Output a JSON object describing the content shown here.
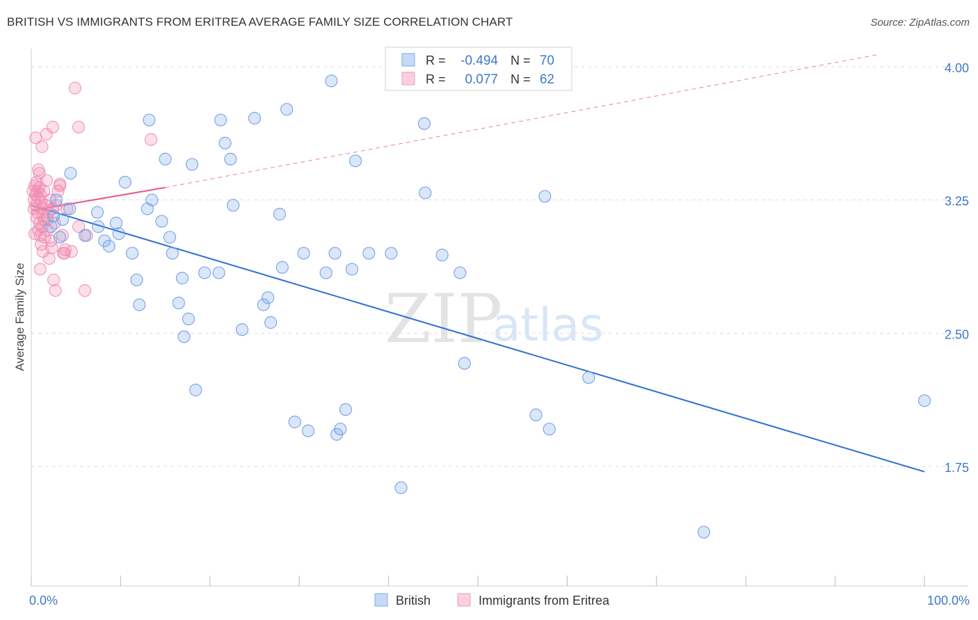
{
  "header": {
    "title": "BRITISH VS IMMIGRANTS FROM ERITREA AVERAGE FAMILY SIZE CORRELATION CHART",
    "source": "Source: ZipAtlas.com"
  },
  "watermark": {
    "zip": "ZIP",
    "atlas": "atlas"
  },
  "legend_box": {
    "rows": [
      {
        "r_label": "R =",
        "r_value": "-0.494",
        "n_label": "N =",
        "n_value": "70"
      },
      {
        "r_label": "R =",
        "r_value": "0.077",
        "n_label": "N =",
        "n_value": "62"
      }
    ]
  },
  "colors": {
    "british": "#6ea0e6",
    "british_line": "#2f6fd0",
    "eritrea": "#f08cb0",
    "eritrea_line": "#e4608e",
    "value_text": "#3f78c8",
    "grid": "#dddddd"
  },
  "chart_data": {
    "type": "scatter",
    "xlabel": "",
    "ylabel": "Average Family Size",
    "x_tick_labels": [
      "0.0%",
      "100.0%"
    ],
    "y_tick_labels": [
      "1.75",
      "2.50",
      "3.25",
      "4.00"
    ],
    "y_ticks": [
      1.75,
      2.5,
      3.25,
      4.0
    ],
    "xlim": [
      0,
      100
    ],
    "ylim": [
      1.0,
      4.1
    ],
    "grid": true,
    "legend_position": "bottom-center",
    "series": [
      {
        "name": "British",
        "r": -0.494,
        "n": 70,
        "points": [
          [
            3.2,
            3.04
          ],
          [
            4.4,
            3.4
          ],
          [
            2.2,
            3.1
          ],
          [
            2.5,
            3.16
          ],
          [
            2.8,
            3.25
          ],
          [
            3.5,
            3.14
          ],
          [
            4.3,
            3.2
          ],
          [
            6.0,
            3.05
          ],
          [
            7.4,
            3.18
          ],
          [
            7.5,
            3.1
          ],
          [
            8.2,
            3.02
          ],
          [
            9.5,
            3.12
          ],
          [
            9.8,
            3.06
          ],
          [
            8.7,
            2.99
          ],
          [
            10.5,
            3.35
          ],
          [
            11.3,
            2.95
          ],
          [
            11.8,
            2.8
          ],
          [
            12.1,
            2.66
          ],
          [
            13.0,
            3.2
          ],
          [
            13.5,
            3.25
          ],
          [
            13.2,
            3.7
          ],
          [
            14.6,
            3.13
          ],
          [
            15.5,
            3.04
          ],
          [
            15.0,
            3.48
          ],
          [
            15.8,
            2.95
          ],
          [
            16.5,
            2.67
          ],
          [
            16.9,
            2.81
          ],
          [
            17.6,
            2.58
          ],
          [
            18.0,
            3.45
          ],
          [
            19.4,
            2.84
          ],
          [
            21.0,
            2.84
          ],
          [
            21.2,
            3.7
          ],
          [
            17.1,
            2.48
          ],
          [
            18.4,
            2.18
          ],
          [
            21.7,
            3.57
          ],
          [
            22.3,
            3.48
          ],
          [
            22.6,
            3.22
          ],
          [
            23.6,
            2.52
          ],
          [
            25.0,
            3.71
          ],
          [
            26.0,
            2.66
          ],
          [
            26.5,
            2.7
          ],
          [
            26.8,
            2.56
          ],
          [
            28.1,
            2.87
          ],
          [
            27.8,
            3.17
          ],
          [
            28.6,
            3.76
          ],
          [
            29.5,
            2.0
          ],
          [
            31.0,
            1.95
          ],
          [
            33.0,
            2.84
          ],
          [
            34.0,
            2.95
          ],
          [
            33.6,
            3.92
          ],
          [
            34.2,
            1.93
          ],
          [
            34.6,
            1.96
          ],
          [
            35.2,
            2.07
          ],
          [
            35.9,
            2.86
          ],
          [
            36.3,
            3.47
          ],
          [
            37.8,
            2.95
          ],
          [
            40.3,
            2.95
          ],
          [
            41.4,
            1.63
          ],
          [
            44.1,
            3.29
          ],
          [
            44.0,
            3.68
          ],
          [
            46.0,
            2.94
          ],
          [
            48.0,
            2.84
          ],
          [
            48.5,
            2.33
          ],
          [
            56.5,
            2.04
          ],
          [
            57.5,
            3.27
          ],
          [
            58.0,
            1.96
          ],
          [
            62.4,
            2.25
          ],
          [
            75.3,
            1.38
          ],
          [
            100.0,
            2.12
          ],
          [
            30.5,
            2.95
          ]
        ],
        "trend": {
          "x": [
            0,
            100
          ],
          "y": [
            3.22,
            1.72
          ],
          "style": "solid"
        }
      },
      {
        "name": "Immigrants from Eritrea",
        "r": 0.077,
        "n": 62,
        "points": [
          [
            0.2,
            3.3
          ],
          [
            0.3,
            3.25
          ],
          [
            0.3,
            3.2
          ],
          [
            0.4,
            3.33
          ],
          [
            0.5,
            3.28
          ],
          [
            0.5,
            3.22
          ],
          [
            0.6,
            3.35
          ],
          [
            0.6,
            3.15
          ],
          [
            0.7,
            3.3
          ],
          [
            0.7,
            3.18
          ],
          [
            0.8,
            3.26
          ],
          [
            0.8,
            3.08
          ],
          [
            0.9,
            3.32
          ],
          [
            0.9,
            3.12
          ],
          [
            1.0,
            3.28
          ],
          [
            1.0,
            3.05
          ],
          [
            1.1,
            3.24
          ],
          [
            1.1,
            3.0
          ],
          [
            1.2,
            3.2
          ],
          [
            1.2,
            3.1
          ],
          [
            1.3,
            3.16
          ],
          [
            1.3,
            2.96
          ],
          [
            1.4,
            3.3
          ],
          [
            1.5,
            3.14
          ],
          [
            1.5,
            3.04
          ],
          [
            1.6,
            3.22
          ],
          [
            1.7,
            3.36
          ],
          [
            1.8,
            3.08
          ],
          [
            1.9,
            3.18
          ],
          [
            2.0,
            2.92
          ],
          [
            2.1,
            3.25
          ],
          [
            2.2,
            3.02
          ],
          [
            2.3,
            2.98
          ],
          [
            2.4,
            3.2
          ],
          [
            2.6,
            3.12
          ],
          [
            2.7,
            2.74
          ],
          [
            2.8,
            3.22
          ],
          [
            3.0,
            3.3
          ],
          [
            3.2,
            3.34
          ],
          [
            3.5,
            3.05
          ],
          [
            3.7,
            2.95
          ],
          [
            3.8,
            2.97
          ],
          [
            0.5,
            3.6
          ],
          [
            0.8,
            3.42
          ],
          [
            1.2,
            3.55
          ],
          [
            1.7,
            3.62
          ],
          [
            2.4,
            3.66
          ],
          [
            3.2,
            3.33
          ],
          [
            4.0,
            3.2
          ],
          [
            4.9,
            3.88
          ],
          [
            5.3,
            3.66
          ],
          [
            5.3,
            3.1
          ],
          [
            6.0,
            2.74
          ],
          [
            6.2,
            3.05
          ],
          [
            13.4,
            3.59
          ],
          [
            1.0,
            2.86
          ],
          [
            2.5,
            2.8
          ],
          [
            3.6,
            2.95
          ],
          [
            4.5,
            2.96
          ],
          [
            0.4,
            3.06
          ],
          [
            0.9,
            3.4
          ],
          [
            1.8,
            3.14
          ]
        ],
        "trend_solid": {
          "x": [
            0,
            15
          ],
          "y": [
            3.19,
            3.32
          ]
        },
        "trend_dashed": {
          "x": [
            15,
            95
          ],
          "y": [
            3.32,
            4.07
          ]
        }
      }
    ]
  }
}
